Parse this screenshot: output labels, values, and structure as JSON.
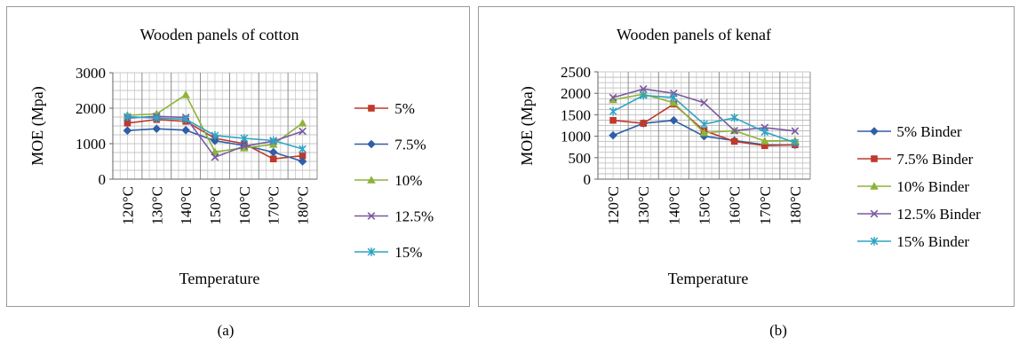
{
  "panels": [
    {
      "caption": "(a)"
    },
    {
      "caption": "(b)"
    }
  ],
  "chart_data": [
    {
      "type": "line",
      "title": "Wooden panels of cotton",
      "xlabel": "Temperature",
      "ylabel": "MOE (Mpa)",
      "ylim": [
        0,
        3000
      ],
      "yticks": [
        0,
        1000,
        2000,
        3000
      ],
      "categories": [
        "120°C",
        "130°C",
        "140°C",
        "150°C",
        "160°C",
        "170°C",
        "180°C"
      ],
      "grid": true,
      "legend": "right",
      "series": [
        {
          "name": "5%",
          "color": "#c0392b",
          "marker": "square",
          "values": [
            1580,
            1680,
            1630,
            1150,
            1000,
            570,
            660
          ]
        },
        {
          "name": "7.5%",
          "color": "#2e5fa8",
          "marker": "diamond",
          "values": [
            1370,
            1420,
            1380,
            1080,
            950,
            760,
            500
          ]
        },
        {
          "name": "10%",
          "color": "#8db33a",
          "marker": "triangle",
          "values": [
            1800,
            1840,
            2380,
            770,
            880,
            980,
            1580
          ]
        },
        {
          "name": "12.5%",
          "color": "#7a5a9e",
          "marker": "x",
          "values": [
            1720,
            1770,
            1740,
            620,
            930,
            1070,
            1350
          ]
        },
        {
          "name": "15%",
          "color": "#2fa3c4",
          "marker": "asterisk",
          "values": [
            1760,
            1720,
            1690,
            1230,
            1150,
            1090,
            850
          ]
        }
      ]
    },
    {
      "type": "line",
      "title": "Wooden panels of kenaf",
      "xlabel": "Temperature",
      "ylabel": "MOE (Mpa)",
      "ylim": [
        0,
        2500
      ],
      "yticks": [
        0,
        500,
        1000,
        1500,
        2000,
        2500
      ],
      "categories": [
        "120°C",
        "130°C",
        "140°C",
        "150°C",
        "160°C",
        "170°C",
        "180°C"
      ],
      "grid": true,
      "legend": "right",
      "series": [
        {
          "name": "5% Binder",
          "color": "#2e5fa8",
          "marker": "diamond",
          "values": [
            1020,
            1300,
            1370,
            1000,
            900,
            800,
            800
          ]
        },
        {
          "name": "7.5% Binder",
          "color": "#c0392b",
          "marker": "square",
          "values": [
            1370,
            1300,
            1750,
            1130,
            880,
            780,
            800
          ]
        },
        {
          "name": "10% Binder",
          "color": "#8db33a",
          "marker": "triangle",
          "values": [
            1850,
            1980,
            1780,
            1080,
            1130,
            890,
            900
          ]
        },
        {
          "name": "12.5% Binder",
          "color": "#7a5a9e",
          "marker": "x",
          "values": [
            1900,
            2100,
            2000,
            1780,
            1130,
            1200,
            1120
          ]
        },
        {
          "name": "15% Binder",
          "color": "#2fa3c4",
          "marker": "asterisk",
          "values": [
            1580,
            1950,
            1900,
            1280,
            1430,
            1100,
            850
          ]
        }
      ]
    }
  ]
}
